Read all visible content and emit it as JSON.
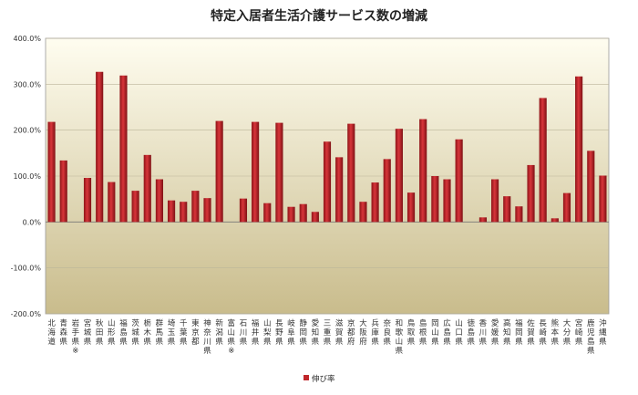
{
  "chart_data": {
    "type": "bar",
    "title": "特定入居者生活介護サービス数の増減",
    "xlabel": "",
    "ylabel": "",
    "ylim": [
      -200,
      400
    ],
    "yticks": [
      "-200.0%",
      "-100.0%",
      "0.0%",
      "100.0%",
      "200.0%",
      "300.0%",
      "400.0%"
    ],
    "grid": true,
    "legend_position": "bottom",
    "categories": [
      "北海道",
      "青森県",
      "岩手県※",
      "宮城県",
      "秋田県",
      "山形県",
      "福島県",
      "茨城県",
      "栃木県",
      "群馬県",
      "埼玉県",
      "千葉県",
      "東京都",
      "神奈川県",
      "新潟県",
      "富山県※",
      "石川県",
      "福井県",
      "山梨県",
      "長野県",
      "岐阜県",
      "静岡県",
      "愛知県",
      "三重県",
      "滋賀県",
      "京都府",
      "大阪府",
      "兵庫県",
      "奈良県",
      "和歌山県",
      "鳥取県",
      "島根県",
      "岡山県",
      "広島県",
      "山口県",
      "徳島県",
      "香川県",
      "愛媛県",
      "高知県",
      "福岡県",
      "佐賀県",
      "長崎県",
      "熊本県",
      "大分県",
      "宮崎県",
      "鹿児島県",
      "沖縄県"
    ],
    "series": [
      {
        "name": "伸び率",
        "color": "#c0262b",
        "values": [
          218,
          134,
          0,
          96,
          327,
          87,
          319,
          68,
          146,
          93,
          47,
          44,
          68,
          52,
          220,
          0,
          51,
          218,
          41,
          216,
          33,
          39,
          22,
          175,
          141,
          214,
          44,
          86,
          137,
          203,
          64,
          224,
          100,
          93,
          180,
          0,
          10,
          93,
          56,
          34,
          124,
          270,
          8,
          63,
          317,
          155,
          101
        ]
      }
    ]
  }
}
